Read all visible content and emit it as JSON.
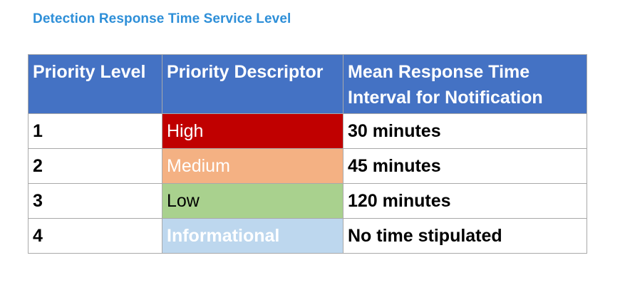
{
  "title": "Detection Response Time Service Level",
  "table": {
    "headers": [
      "Priority Level",
      "Priority Descriptor",
      "Mean Response Time Interval for Notification"
    ],
    "rows": [
      {
        "level": "1",
        "descriptor": "High",
        "interval": "30 minutes",
        "bg": "#c00000",
        "fg": "#ffffff"
      },
      {
        "level": "2",
        "descriptor": "Medium",
        "interval": "45 minutes",
        "bg": "#f4b183",
        "fg": "#ffffff"
      },
      {
        "level": "3",
        "descriptor": "Low",
        "interval": "120 minutes",
        "bg": "#a9d18e",
        "fg": "#000000"
      },
      {
        "level": "4",
        "descriptor": "Informational",
        "interval": "No time stipulated",
        "bg": "#bdd7ee",
        "fg": "#ffffff"
      }
    ]
  },
  "colors": {
    "title": "#2e8fd8",
    "header_bg": "#4472c4",
    "header_fg": "#ffffff",
    "border": "#a9a9a9"
  }
}
